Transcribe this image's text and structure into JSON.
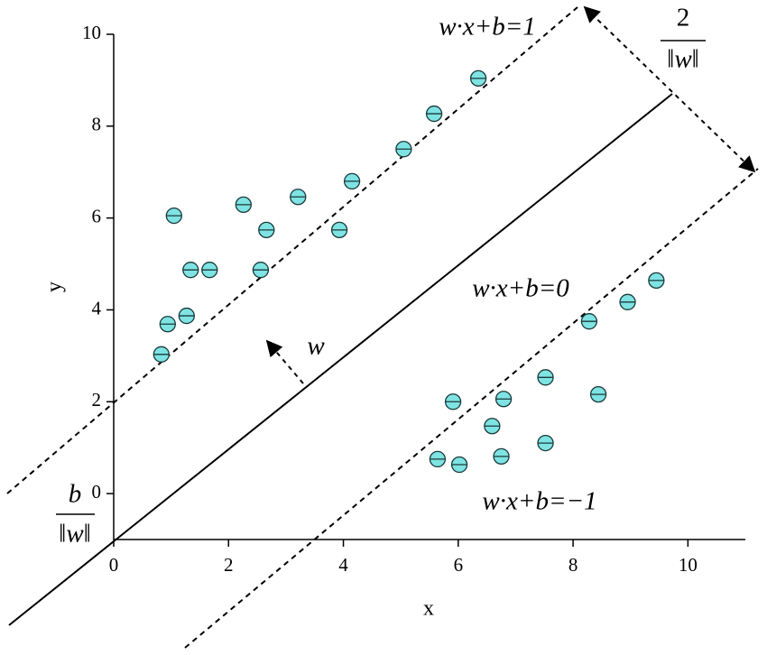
{
  "chart_data": {
    "type": "scatter",
    "x_label": "x",
    "y_label": "y",
    "xlim": [
      0,
      11
    ],
    "ylim": [
      -1,
      10
    ],
    "xticks": [
      0,
      2,
      4,
      6,
      8,
      10
    ],
    "yticks": [
      0,
      2,
      4,
      6,
      8,
      10
    ],
    "annotations": [
      "w·x+b=1",
      "w·x+b=0",
      "w·x+b=−1",
      "w",
      "2",
      "‖w‖",
      "b",
      "‖w‖"
    ],
    "series": [
      {
        "color": "#7fe3e3",
        "x": [
          0.83,
          0.94,
          1.27,
          1.05,
          1.34,
          1.67,
          2.26,
          2.66,
          2.56,
          3.21,
          3.93,
          4.15,
          5.05,
          5.58,
          6.35
        ],
        "values": [
          3.03,
          3.69,
          3.87,
          6.05,
          4.87,
          4.87,
          6.29,
          5.74,
          4.87,
          6.46,
          5.74,
          6.8,
          7.5,
          8.27,
          9.04
        ]
      },
      {
        "color": "#7fe3e3",
        "x": [
          5.91,
          6.79,
          7.52,
          6.59,
          5.64,
          6.02,
          6.75,
          7.52,
          8.44,
          8.28,
          8.95,
          9.45
        ],
        "values": [
          2.0,
          2.06,
          2.53,
          1.47,
          0.75,
          0.63,
          0.81,
          1.1,
          2.16,
          3.75,
          4.17,
          4.64
        ]
      }
    ]
  }
}
